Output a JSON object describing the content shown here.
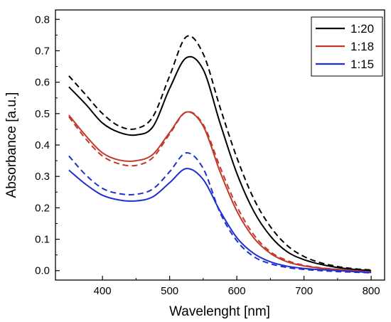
{
  "chart_data": {
    "type": "line",
    "xlabel": "Wavelenght [nm]",
    "ylabel": "Absorbance [a.u.]",
    "xlim": [
      330,
      820
    ],
    "ylim": [
      -0.03,
      0.83
    ],
    "xticks": [
      400,
      500,
      600,
      700,
      800
    ],
    "yticks": [
      0.0,
      0.1,
      0.2,
      0.3,
      0.4,
      0.5,
      0.6,
      0.7,
      0.8
    ],
    "xtick_labels": [
      "400",
      "500",
      "600",
      "700",
      "800"
    ],
    "ytick_labels": [
      "0.0",
      "0.1",
      "0.2",
      "0.3",
      "0.4",
      "0.5",
      "0.6",
      "0.7",
      "0.8"
    ],
    "legend": {
      "placement": "top-right"
    },
    "series": [
      {
        "name": "1:20",
        "color": "#000000",
        "style": "solid",
        "x": [
          350,
          375,
          400,
          425,
          450,
          475,
          500,
          525,
          550,
          575,
          600,
          625,
          650,
          675,
          700,
          725,
          750,
          775,
          800
        ],
        "y": [
          0.585,
          0.53,
          0.47,
          0.44,
          0.432,
          0.458,
          0.58,
          0.678,
          0.64,
          0.47,
          0.31,
          0.19,
          0.11,
          0.06,
          0.035,
          0.02,
          0.01,
          0.004,
          0.0
        ]
      },
      {
        "name": "",
        "color": "#000000",
        "style": "dashed",
        "x": [
          350,
          375,
          400,
          425,
          450,
          475,
          500,
          525,
          550,
          575,
          600,
          625,
          650,
          675,
          700,
          725,
          750,
          775,
          800
        ],
        "y": [
          0.62,
          0.56,
          0.5,
          0.46,
          0.452,
          0.49,
          0.62,
          0.745,
          0.69,
          0.52,
          0.36,
          0.23,
          0.14,
          0.08,
          0.045,
          0.025,
          0.013,
          0.006,
          0.002
        ]
      },
      {
        "name": "1:18",
        "color": "#c0392b",
        "style": "solid",
        "x": [
          350,
          375,
          400,
          425,
          450,
          475,
          500,
          525,
          550,
          575,
          600,
          625,
          650,
          675,
          700,
          725,
          750,
          775,
          800
        ],
        "y": [
          0.495,
          0.43,
          0.375,
          0.352,
          0.35,
          0.37,
          0.44,
          0.505,
          0.46,
          0.315,
          0.19,
          0.105,
          0.055,
          0.028,
          0.015,
          0.008,
          0.004,
          0.0,
          -0.004
        ]
      },
      {
        "name": "",
        "color": "#c0392b",
        "style": "dashed",
        "x": [
          350,
          375,
          400,
          425,
          450,
          475,
          500,
          525,
          550,
          575,
          600,
          625,
          650,
          675,
          700,
          725,
          750,
          775,
          800
        ],
        "y": [
          0.49,
          0.42,
          0.365,
          0.34,
          0.335,
          0.36,
          0.435,
          0.505,
          0.465,
          0.33,
          0.205,
          0.115,
          0.06,
          0.032,
          0.017,
          0.009,
          0.004,
          0.0,
          -0.005
        ]
      },
      {
        "name": "1:15",
        "color": "#1f2fd0",
        "style": "solid",
        "x": [
          350,
          375,
          400,
          425,
          450,
          475,
          500,
          525,
          550,
          575,
          600,
          625,
          650,
          675,
          700,
          725,
          750,
          775,
          800
        ],
        "y": [
          0.32,
          0.275,
          0.24,
          0.225,
          0.222,
          0.235,
          0.28,
          0.325,
          0.29,
          0.19,
          0.105,
          0.055,
          0.028,
          0.014,
          0.007,
          0.003,
          0.0,
          -0.003,
          -0.006
        ]
      },
      {
        "name": "",
        "color": "#1f2fd0",
        "style": "dashed",
        "x": [
          350,
          375,
          400,
          425,
          450,
          475,
          500,
          525,
          550,
          575,
          600,
          625,
          650,
          675,
          700,
          725,
          750,
          775,
          800
        ],
        "y": [
          0.365,
          0.305,
          0.262,
          0.245,
          0.243,
          0.26,
          0.315,
          0.375,
          0.325,
          0.185,
          0.095,
          0.045,
          0.022,
          0.01,
          0.004,
          0.0,
          -0.003,
          -0.005,
          -0.007
        ]
      }
    ]
  }
}
